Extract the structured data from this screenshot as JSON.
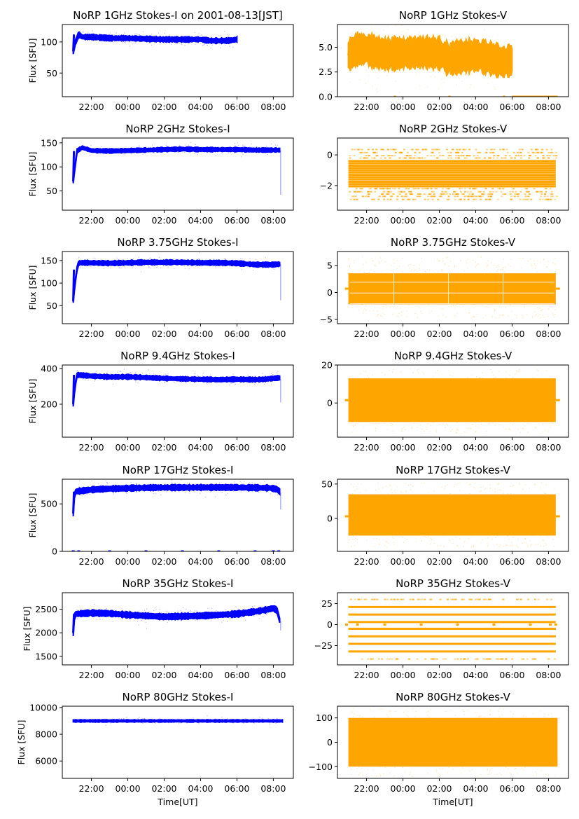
{
  "figure": {
    "colors": {
      "stokes_i": "#0000ff",
      "stokes_v": "#ffa500",
      "axes": "#000000"
    }
  },
  "chart_data": [
    {
      "type": "scatter",
      "panel": "1GHz-I",
      "title": "NoRP 1GHz Stokes-I on 2001-08-13[JST]",
      "xlabel": "",
      "ylabel": "Flux [SFU]",
      "xlim_hours": [
        20.4,
        33.1
      ],
      "ylim": [
        12,
        128
      ],
      "xticks": [
        "22:00",
        "00:00",
        "02:00",
        "04:00",
        "06:00",
        "08:00"
      ],
      "yticks": [
        50,
        100
      ],
      "series": [
        {
          "name": "Stokes-I",
          "color": "#0000ff",
          "x_hours": [
            21.0,
            21.1,
            21.3,
            21.5,
            22.0,
            23.0,
            24.0,
            25.0,
            26.0,
            27.0,
            28.0,
            28.5,
            29.0,
            29.5,
            30.0
          ],
          "y": [
            85,
            98,
            112,
            108,
            108,
            106,
            106,
            105,
            104,
            104,
            104,
            102,
            102,
            102,
            104
          ],
          "spread": 4
        }
      ]
    },
    {
      "type": "scatter",
      "panel": "1GHz-V",
      "title": "NoRP 1GHz Stokes-V",
      "xlabel": "",
      "ylabel": "",
      "xlim_hours": [
        20.4,
        33.1
      ],
      "ylim": [
        0,
        7.3
      ],
      "xticks": [
        "22:00",
        "00:00",
        "02:00",
        "04:00",
        "06:00",
        "08:00"
      ],
      "yticks": [
        "0.0",
        "2.5",
        "5.0"
      ],
      "series": [
        {
          "name": "Stokes-V",
          "color": "#ffa500",
          "x_hours": [
            21.0,
            21.5,
            22.0,
            22.5,
            23.0,
            24.0,
            25.0,
            26.0,
            26.5,
            27.0,
            28.0,
            29.0,
            29.5,
            30.0
          ],
          "y": [
            4.2,
            4.8,
            4.8,
            4.5,
            4.3,
            4.4,
            4.5,
            4.4,
            3.8,
            4.0,
            4.2,
            3.8,
            3.5,
            3.7
          ],
          "spread": 1.5
        }
      ],
      "zero_segments_hours": [
        [
          23.5,
          23.6
        ],
        [
          26.5,
          26.6
        ],
        [
          29.5,
          29.55
        ],
        [
          30.0,
          32.5
        ]
      ]
    },
    {
      "type": "scatter",
      "panel": "2GHz-I",
      "title": "NoRP 2GHz Stokes-I",
      "xlabel": "",
      "ylabel": "Flux [SFU]",
      "xlim_hours": [
        20.4,
        33.1
      ],
      "ylim": [
        10,
        160
      ],
      "xticks": [
        "22:00",
        "00:00",
        "02:00",
        "04:00",
        "06:00",
        "08:00"
      ],
      "yticks": [
        50,
        100,
        150
      ],
      "series": [
        {
          "name": "Stokes-I",
          "color": "#0000ff",
          "x_hours": [
            21.0,
            21.1,
            21.2,
            21.5,
            22.0,
            23.0,
            24.0,
            25.0,
            26.0,
            27.0,
            28.0,
            29.0,
            30.0,
            31.0,
            32.0,
            32.35
          ],
          "y": [
            70,
            100,
            133,
            140,
            134,
            133,
            134,
            135,
            136,
            137,
            136,
            136,
            136,
            135,
            135,
            135
          ],
          "spread": 4
        }
      ],
      "dropout": {
        "x_hours": 32.4,
        "y_range": [
          42,
          135
        ]
      }
    },
    {
      "type": "scatter",
      "panel": "2GHz-V",
      "title": "NoRP 2GHz Stokes-V",
      "xlabel": "",
      "ylabel": "",
      "xlim_hours": [
        20.4,
        33.1
      ],
      "ylim": [
        -3.6,
        1.1
      ],
      "xticks": [
        "22:00",
        "00:00",
        "02:00",
        "04:00",
        "06:00",
        "08:00"
      ],
      "yticks": [
        -2,
        0
      ],
      "series": [
        {
          "name": "Stokes-V",
          "color": "#ffa500",
          "x_range_hours": [
            21.0,
            32.4
          ],
          "quantized_levels": [
            -2.9,
            -2.7,
            -2.55,
            -2.4,
            -2.2,
            -2.05,
            -1.9,
            -1.75,
            -1.6,
            -1.45,
            -1.3,
            -1.15,
            -1.0,
            -0.85,
            -0.7,
            -0.55,
            -0.4,
            -0.2,
            -0.05,
            0.15,
            0.35
          ],
          "dense_levels": [
            -2.05,
            -1.9,
            -1.75,
            -1.6,
            -1.45,
            -1.3,
            -1.15,
            -1.0,
            -0.85,
            -0.7,
            -0.55,
            -0.4
          ]
        }
      ]
    },
    {
      "type": "scatter",
      "panel": "3.75GHz-I",
      "title": "NoRP 3.75GHz Stokes-I",
      "xlabel": "",
      "ylabel": "Flux [SFU]",
      "xlim_hours": [
        20.4,
        33.1
      ],
      "ylim": [
        10,
        170
      ],
      "xticks": [
        "22:00",
        "00:00",
        "02:00",
        "04:00",
        "06:00",
        "08:00"
      ],
      "yticks": [
        50,
        100,
        150
      ],
      "series": [
        {
          "name": "Stokes-I",
          "color": "#0000ff",
          "x_hours": [
            21.0,
            21.1,
            21.2,
            21.3,
            22.0,
            23.0,
            24.0,
            25.0,
            26.0,
            27.0,
            28.0,
            29.0,
            30.0,
            31.0,
            32.0,
            32.35
          ],
          "y": [
            60,
            100,
            130,
            145,
            145,
            144,
            145,
            146,
            146,
            146,
            145,
            145,
            144,
            141,
            141,
            142
          ],
          "spread": 5
        }
      ],
      "dropout": {
        "x_hours": 32.4,
        "y_range": [
          62,
          142
        ]
      }
    },
    {
      "type": "scatter",
      "panel": "3.75GHz-V",
      "title": "NoRP 3.75GHz Stokes-V",
      "xlabel": "",
      "ylabel": "",
      "xlim_hours": [
        20.4,
        33.1
      ],
      "ylim": [
        -5.8,
        7.6
      ],
      "xticks": [
        "22:00",
        "00:00",
        "02:00",
        "04:00",
        "06:00",
        "08:00"
      ],
      "yticks": [
        -5,
        0,
        5
      ],
      "series": [
        {
          "name": "Stokes-V",
          "color": "#ffa500",
          "x_range_hours": [
            21.0,
            32.4
          ],
          "center": 0.7,
          "core_range": [
            -2.2,
            3.6
          ],
          "outer_range": [
            -4.8,
            6.6
          ]
        }
      ],
      "gap_lines_y": [
        -2.1,
        -0.1,
        1.9,
        3.6
      ],
      "gap_x_hours": [
        23.5,
        26.5,
        29.5
      ]
    },
    {
      "type": "scatter",
      "panel": "9.4GHz-I",
      "title": "NoRP 9.4GHz Stokes-I",
      "xlabel": "",
      "ylabel": "Flux [SFU]",
      "xlim_hours": [
        20.4,
        33.1
      ],
      "ylim": [
        15,
        420
      ],
      "xticks": [
        "22:00",
        "00:00",
        "02:00",
        "04:00",
        "06:00",
        "08:00"
      ],
      "yticks": [
        200,
        400
      ],
      "series": [
        {
          "name": "Stokes-I",
          "color": "#0000ff",
          "x_hours": [
            21.0,
            21.1,
            21.2,
            22.0,
            23.0,
            24.0,
            25.0,
            26.0,
            27.0,
            28.0,
            29.0,
            30.0,
            31.0,
            31.5,
            32.0,
            32.35
          ],
          "y": [
            200,
            300,
            365,
            358,
            353,
            354,
            350,
            345,
            342,
            340,
            338,
            340,
            338,
            340,
            345,
            348
          ],
          "spread": 12
        }
      ],
      "dropout": {
        "x_hours": 32.4,
        "y_range": [
          210,
          340
        ]
      }
    },
    {
      "type": "scatter",
      "panel": "9.4GHz-V",
      "title": "NoRP 9.4GHz Stokes-V",
      "xlabel": "",
      "ylabel": "",
      "xlim_hours": [
        20.4,
        33.1
      ],
      "ylim": [
        -18,
        20
      ],
      "xticks": [
        "22:00",
        "00:00",
        "02:00",
        "04:00",
        "06:00",
        "08:00"
      ],
      "yticks": [
        0,
        20
      ],
      "series": [
        {
          "name": "Stokes-V",
          "color": "#ffa500",
          "x_range_hours": [
            21.0,
            32.4
          ],
          "center": 1.5,
          "core_range": [
            -10,
            13
          ],
          "outer_range": [
            -16,
            18
          ]
        }
      ]
    },
    {
      "type": "scatter",
      "panel": "17GHz-I",
      "title": "NoRP 17GHz Stokes-I",
      "xlabel": "",
      "ylabel": "Flux [SFU]",
      "xlim_hours": [
        20.4,
        33.1
      ],
      "ylim": [
        0,
        760
      ],
      "xticks": [
        "22:00",
        "00:00",
        "02:00",
        "04:00",
        "06:00",
        "08:00"
      ],
      "yticks": [
        0,
        500
      ],
      "series": [
        {
          "name": "Stokes-I",
          "color": "#0000ff",
          "x_hours": [
            21.0,
            21.05,
            21.1,
            22.0,
            23.0,
            24.0,
            25.0,
            26.0,
            27.0,
            28.0,
            29.0,
            30.0,
            31.0,
            31.8,
            32.2,
            32.35
          ],
          "y": [
            400,
            560,
            630,
            650,
            660,
            665,
            670,
            672,
            672,
            673,
            673,
            673,
            670,
            668,
            655,
            630
          ],
          "spread": 28
        }
      ],
      "dropout": {
        "x_hours": 32.4,
        "y_range": [
          440,
          620
        ]
      },
      "zero_marks_hours": [
        21.0,
        21.3,
        23.0,
        25.0,
        27.0,
        29.0,
        31.0,
        32.0,
        32.3
      ]
    },
    {
      "type": "scatter",
      "panel": "17GHz-V",
      "title": "NoRP 17GHz Stokes-V",
      "xlabel": "",
      "ylabel": "",
      "xlim_hours": [
        20.4,
        33.1
      ],
      "ylim": [
        -48,
        57
      ],
      "xticks": [
        "22:00",
        "00:00",
        "02:00",
        "04:00",
        "06:00",
        "08:00"
      ],
      "yticks": [
        0,
        50
      ],
      "series": [
        {
          "name": "Stokes-V",
          "color": "#ffa500",
          "x_range_hours": [
            21.0,
            32.4
          ],
          "center": 3,
          "core_range": [
            -25,
            35
          ],
          "outer_range": [
            -42,
            52
          ]
        }
      ]
    },
    {
      "type": "scatter",
      "panel": "35GHz-I",
      "title": "NoRP 35GHz Stokes-I",
      "xlabel": "",
      "ylabel": "Flux [SFU]",
      "xlim_hours": [
        20.4,
        33.1
      ],
      "ylim": [
        1320,
        2850
      ],
      "xticks": [
        "22:00",
        "00:00",
        "02:00",
        "04:00",
        "06:00",
        "08:00"
      ],
      "yticks": [
        1500,
        2000,
        2500
      ],
      "series": [
        {
          "name": "Stokes-I",
          "color": "#0000ff",
          "x_hours": [
            21.0,
            21.05,
            21.1,
            22.0,
            23.0,
            24.0,
            25.0,
            26.0,
            27.0,
            28.0,
            29.0,
            30.0,
            31.0,
            31.5,
            32.0,
            32.2,
            32.35
          ],
          "y": [
            2000,
            2300,
            2400,
            2420,
            2410,
            2380,
            2360,
            2340,
            2350,
            2360,
            2380,
            2400,
            2450,
            2480,
            2520,
            2480,
            2260
          ],
          "spread": 60
        }
      ],
      "dropout": {
        "x_hours": 32.4,
        "y_range": [
          2050,
          2250
        ]
      }
    },
    {
      "type": "scatter",
      "panel": "35GHz-V",
      "title": "NoRP 35GHz Stokes-V",
      "xlabel": "",
      "ylabel": "",
      "xlim_hours": [
        20.4,
        33.1
      ],
      "ylim": [
        -48,
        38
      ],
      "xticks": [
        "22:00",
        "00:00",
        "02:00",
        "04:00",
        "06:00",
        "08:00"
      ],
      "yticks": [
        -25,
        0,
        25
      ],
      "series": [
        {
          "name": "Stokes-V",
          "color": "#ffa500",
          "x_range_hours": [
            21.0,
            32.4
          ],
          "quantized_levels": [
            -41,
            -32,
            -23,
            -14,
            -5,
            3,
            12,
            21,
            30
          ],
          "dense_levels": [
            -32,
            -23,
            -14,
            -5,
            3,
            12,
            21
          ]
        }
      ],
      "zero_marks_hours": [
        20.9,
        21.5,
        23.0,
        25.0,
        27.0,
        29.0,
        31.0,
        32.1,
        32.4
      ]
    },
    {
      "type": "scatter",
      "panel": "80GHz-I",
      "title": "NoRP 80GHz Stokes-I",
      "xlabel": "Time[UT]",
      "ylabel": "Flux [SFU]",
      "xlim_hours": [
        20.4,
        33.1
      ],
      "ylim": [
        4700,
        10100
      ],
      "xticks": [
        "22:00",
        "00:00",
        "02:00",
        "04:00",
        "06:00",
        "08:00"
      ],
      "yticks": [
        6000,
        8000,
        10000
      ],
      "series": [
        {
          "name": "Stokes-I",
          "color": "#0000ff",
          "x_hours": [
            21.0,
            32.5
          ],
          "y": [
            9000,
            9000
          ],
          "spread": 80
        }
      ]
    },
    {
      "type": "scatter",
      "panel": "80GHz-V",
      "title": "NoRP 80GHz Stokes-V",
      "xlabel": "Time[UT]",
      "ylabel": "",
      "xlim_hours": [
        20.4,
        33.1
      ],
      "ylim": [
        -148,
        148
      ],
      "xticks": [
        "22:00",
        "00:00",
        "02:00",
        "04:00",
        "06:00",
        "08:00"
      ],
      "yticks": [
        -100,
        0,
        100
      ],
      "series": [
        {
          "name": "Stokes-V",
          "color": "#ffa500",
          "x_range_hours": [
            21.0,
            32.5
          ],
          "center": -5,
          "core_range": [
            -100,
            100
          ],
          "outer_range": [
            -140,
            140
          ]
        }
      ]
    }
  ]
}
